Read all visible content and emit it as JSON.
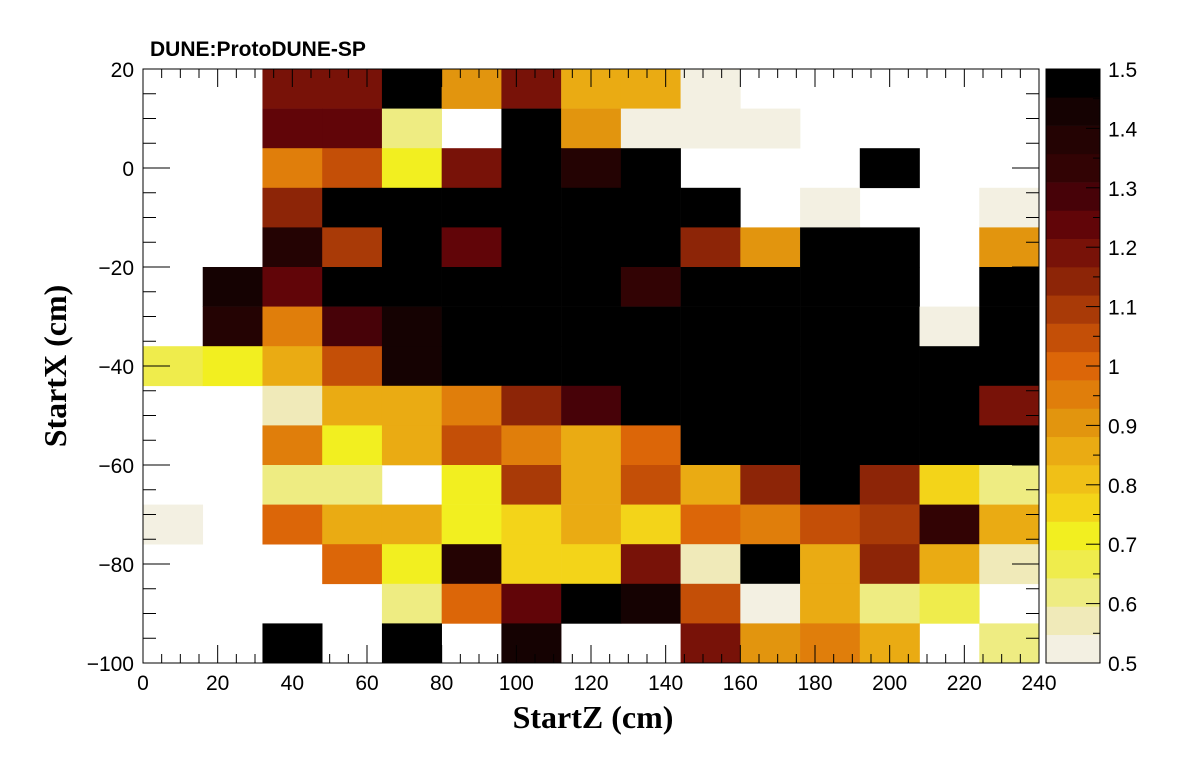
{
  "header": {
    "label": "DUNE:ProtoDUNE-SP"
  },
  "chart_data": {
    "type": "heatmap",
    "title": "",
    "xlabel": "StartZ (cm)",
    "ylabel": "StartX (cm)",
    "xlim": [
      0,
      240
    ],
    "ylim": [
      -100,
      20
    ],
    "zlim": [
      0.5,
      1.5
    ],
    "x_bin_width": 16,
    "y_bin_width": 8,
    "x_bin_edges": [
      0,
      16,
      32,
      48,
      64,
      80,
      96,
      112,
      128,
      144,
      160,
      176,
      192,
      208,
      224,
      240
    ],
    "y_bin_edges": [
      20,
      12,
      4,
      -4,
      -12,
      -20,
      -28,
      -36,
      -44,
      -52,
      -60,
      -68,
      -76,
      -84,
      -92,
      -100
    ],
    "x_ticks": [
      0,
      20,
      40,
      60,
      80,
      100,
      120,
      140,
      160,
      180,
      200,
      220,
      240
    ],
    "y_ticks": [
      20,
      0,
      -20,
      -40,
      -60,
      -80,
      -100
    ],
    "z_ticks": [
      "0.5",
      "0.6",
      "0.7",
      "0.8",
      "0.9",
      "1",
      "1.1",
      "1.2",
      "1.3",
      "1.4",
      "1.5"
    ],
    "z_tick_values": [
      0.5,
      0.6,
      0.7,
      0.8,
      0.9,
      1.0,
      1.1,
      1.2,
      1.3,
      1.4,
      1.5
    ],
    "colorbar_colors": [
      "#f3f0e2",
      "#f0eab9",
      "#eeec82",
      "#efec4c",
      "#f2ef20",
      "#f3d419",
      "#f0c017",
      "#eaab13",
      "#e2950e",
      "#e07e0b",
      "#dc6608",
      "#c44f07",
      "#a93a07",
      "#8d2507",
      "#781208",
      "#610508",
      "#470208",
      "#320304",
      "#240303",
      "#150202",
      "#000000"
    ],
    "grid": false,
    "values": [
      [
        null,
        null,
        1.18,
        1.18,
        1.5,
        0.9,
        1.2,
        0.88,
        0.88,
        0.51,
        null,
        null,
        null,
        null,
        null
      ],
      [
        null,
        null,
        1.25,
        1.25,
        0.63,
        null,
        1.5,
        0.9,
        0.51,
        0.51,
        0.51,
        null,
        null,
        null,
        null
      ],
      [
        null,
        null,
        0.94,
        1.07,
        0.7,
        1.18,
        1.5,
        1.4,
        1.5,
        null,
        null,
        null,
        1.5,
        null,
        null
      ],
      [
        null,
        null,
        1.13,
        1.5,
        1.5,
        1.5,
        1.5,
        1.5,
        1.5,
        1.5,
        null,
        0.51,
        null,
        null,
        0.51
      ],
      [
        null,
        null,
        1.38,
        1.1,
        1.5,
        1.25,
        1.5,
        1.5,
        1.5,
        1.12,
        0.9,
        1.5,
        1.5,
        null,
        0.89
      ],
      [
        null,
        1.45,
        1.25,
        1.5,
        1.5,
        1.5,
        1.5,
        1.5,
        1.35,
        1.5,
        1.5,
        1.5,
        1.5,
        null,
        1.5
      ],
      [
        null,
        1.4,
        0.95,
        1.27,
        1.45,
        1.5,
        1.5,
        1.5,
        1.5,
        1.5,
        1.5,
        1.5,
        1.5,
        0.51,
        1.5
      ],
      [
        0.66,
        0.7,
        0.88,
        1.05,
        1.45,
        1.5,
        1.5,
        1.5,
        1.5,
        1.5,
        1.5,
        1.5,
        1.5,
        1.5,
        1.5
      ],
      [
        null,
        null,
        0.58,
        0.84,
        0.84,
        0.95,
        1.12,
        1.3,
        1.5,
        1.5,
        1.5,
        1.5,
        1.5,
        1.5,
        1.2
      ],
      [
        null,
        null,
        0.95,
        0.7,
        0.84,
        1.03,
        0.95,
        0.84,
        0.98,
        1.5,
        1.5,
        1.5,
        1.5,
        1.5,
        1.5
      ],
      [
        null,
        null,
        0.63,
        0.63,
        null,
        0.7,
        1.1,
        0.88,
        1.03,
        0.85,
        1.12,
        1.5,
        1.12,
        0.76,
        0.63
      ],
      [
        0.51,
        null,
        1.0,
        0.84,
        0.84,
        0.7,
        0.78,
        0.88,
        0.77,
        1.0,
        0.95,
        1.05,
        1.1,
        1.35,
        0.88
      ],
      [
        null,
        null,
        null,
        1.0,
        0.7,
        1.4,
        0.78,
        0.78,
        1.2,
        0.58,
        1.5,
        0.88,
        1.15,
        0.85,
        0.55
      ],
      [
        null,
        null,
        null,
        null,
        0.6,
        1.0,
        1.22,
        1.5,
        1.43,
        1.05,
        0.54,
        0.88,
        0.64,
        0.66,
        null
      ],
      [
        null,
        null,
        1.5,
        null,
        1.5,
        null,
        1.42,
        null,
        null,
        1.17,
        0.9,
        0.97,
        0.88,
        null,
        0.6
      ]
    ]
  }
}
